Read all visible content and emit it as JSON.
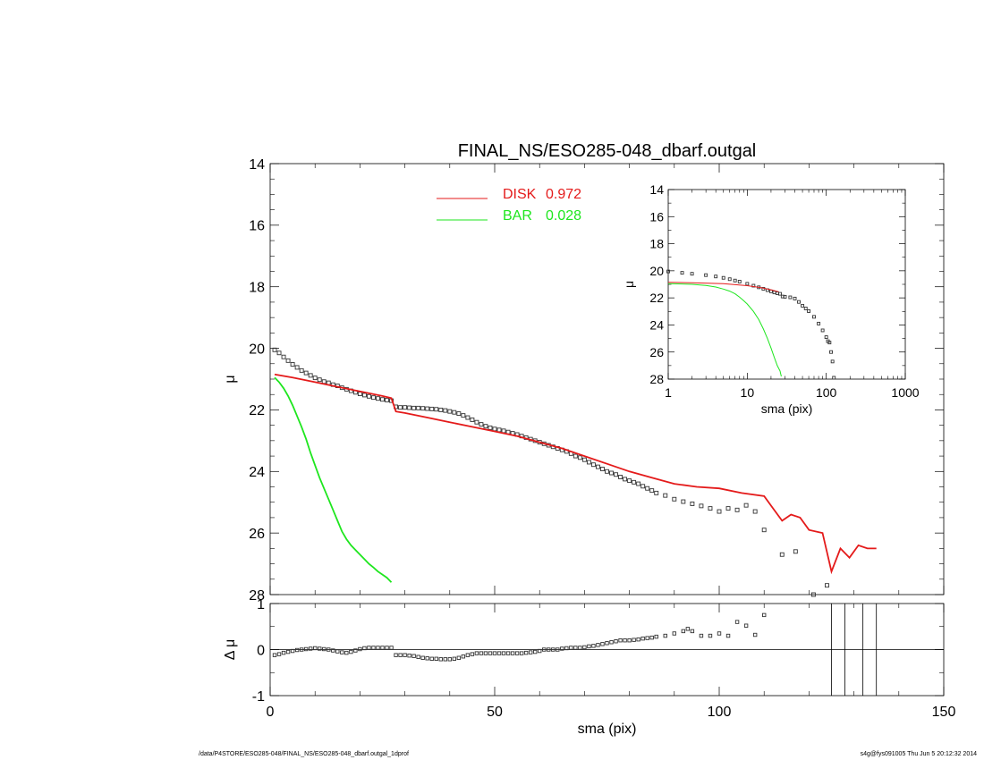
{
  "footer": {
    "path": "/data/P4STORE/ESO285-048/FINAL_NS/ESO285-048_dbarf.outgal_1dprof",
    "stamp": "s4g@fys091005  Thu Jun  5 20:12:32 2014"
  },
  "chart_data": [
    {
      "id": "main",
      "type": "line",
      "title": "FINAL_NS/ESO285-048_dbarf.outgal",
      "xlabel": "",
      "ylabel": "μ",
      "xlim": [
        0,
        150
      ],
      "ylim": [
        28,
        14
      ],
      "y_inverted": true,
      "yticks": [
        14,
        16,
        18,
        20,
        22,
        24,
        26,
        28
      ],
      "legend_position": "top-center",
      "legend": [
        {
          "name": "DISK",
          "value": "0.972",
          "color": "#e41a1a"
        },
        {
          "name": "BAR",
          "value": "0.028",
          "color": "#1ee61e"
        }
      ],
      "series": [
        {
          "name": "data",
          "style": "points",
          "color": "#000000",
          "x": [
            1,
            2,
            3,
            4,
            5,
            6,
            7,
            8,
            9,
            10,
            11,
            12,
            13,
            14,
            15,
            16,
            17,
            18,
            19,
            20,
            21,
            22,
            23,
            24,
            25,
            26,
            27,
            28,
            29,
            30,
            31,
            32,
            33,
            34,
            35,
            36,
            37,
            38,
            39,
            40,
            41,
            42,
            43,
            44,
            45,
            46,
            47,
            48,
            49,
            50,
            51,
            52,
            53,
            54,
            55,
            56,
            57,
            58,
            59,
            60,
            61,
            62,
            63,
            64,
            65,
            66,
            67,
            68,
            69,
            70,
            71,
            72,
            73,
            74,
            75,
            76,
            77,
            78,
            79,
            80,
            81,
            82,
            83,
            84,
            85,
            86,
            88,
            90,
            92,
            94,
            96,
            98,
            100,
            102,
            104,
            106,
            108,
            110,
            114,
            117,
            121,
            124
          ],
          "y": [
            20.05,
            20.15,
            20.28,
            20.4,
            20.52,
            20.62,
            20.72,
            20.8,
            20.88,
            20.96,
            21.02,
            21.08,
            21.12,
            21.18,
            21.22,
            21.28,
            21.33,
            21.38,
            21.43,
            21.48,
            21.52,
            21.56,
            21.6,
            21.63,
            21.66,
            21.68,
            21.7,
            21.9,
            21.92,
            21.92,
            21.93,
            21.94,
            21.94,
            21.95,
            21.96,
            21.97,
            21.98,
            22.0,
            22.02,
            22.05,
            22.08,
            22.12,
            22.18,
            22.25,
            22.32,
            22.4,
            22.47,
            22.53,
            22.58,
            22.62,
            22.65,
            22.68,
            22.72,
            22.76,
            22.8,
            22.85,
            22.9,
            22.95,
            23.0,
            23.05,
            23.1,
            23.15,
            23.2,
            23.25,
            23.3,
            23.35,
            23.42,
            23.5,
            23.55,
            23.62,
            23.7,
            23.78,
            23.85,
            23.92,
            24.0,
            24.05,
            24.1,
            24.18,
            24.25,
            24.3,
            24.35,
            24.4,
            24.48,
            24.55,
            24.62,
            24.7,
            24.78,
            24.9,
            24.98,
            25.05,
            25.12,
            25.2,
            25.3,
            25.2,
            25.25,
            25.1,
            25.3,
            25.9,
            26.7,
            26.6,
            28.0,
            27.7
          ]
        },
        {
          "name": "DISK",
          "style": "line",
          "color": "#e41a1a",
          "x": [
            1,
            5,
            10,
            15,
            20,
            25,
            27,
            28,
            30,
            35,
            40,
            45,
            50,
            55,
            60,
            65,
            70,
            75,
            80,
            85,
            90,
            95,
            100,
            105,
            110,
            112,
            114,
            116,
            118,
            120,
            123,
            125,
            127,
            129,
            131,
            133,
            135
          ],
          "y": [
            20.85,
            20.95,
            21.1,
            21.25,
            21.4,
            21.55,
            21.62,
            22.05,
            22.1,
            22.25,
            22.4,
            22.55,
            22.7,
            22.85,
            23.05,
            23.25,
            23.5,
            23.75,
            24.0,
            24.2,
            24.4,
            24.5,
            24.55,
            24.7,
            24.8,
            25.2,
            25.6,
            25.4,
            25.5,
            25.9,
            26.0,
            27.25,
            26.5,
            26.8,
            26.4,
            26.5,
            26.5
          ]
        },
        {
          "name": "BAR",
          "style": "line",
          "color": "#1ee61e",
          "x": [
            1,
            2,
            3,
            4,
            5,
            6,
            7,
            8,
            9,
            10,
            11,
            12,
            13,
            14,
            15,
            16,
            17,
            18,
            19,
            20,
            21,
            22,
            23,
            24,
            25,
            26,
            27
          ],
          "y": [
            20.95,
            21.1,
            21.3,
            21.55,
            21.85,
            22.2,
            22.55,
            22.95,
            23.4,
            23.8,
            24.2,
            24.55,
            24.9,
            25.25,
            25.6,
            25.95,
            26.2,
            26.4,
            26.55,
            26.7,
            26.85,
            27.0,
            27.12,
            27.25,
            27.35,
            27.45,
            27.6
          ]
        }
      ]
    },
    {
      "id": "residual",
      "type": "scatter",
      "title": "",
      "xlabel": "sma (pix)",
      "ylabel": "Δ μ",
      "xlim": [
        0,
        150
      ],
      "ylim": [
        -1,
        1
      ],
      "xticks": [
        0,
        50,
        100,
        150
      ],
      "yticks": [
        -1,
        0,
        1
      ],
      "zero_line": true,
      "vertical_lines_x": [
        125,
        128,
        132,
        135
      ],
      "series": [
        {
          "name": "residual",
          "style": "points",
          "color": "#000000",
          "x": [
            1,
            2,
            3,
            4,
            5,
            6,
            7,
            8,
            9,
            10,
            11,
            12,
            13,
            14,
            15,
            16,
            17,
            18,
            19,
            20,
            21,
            22,
            23,
            24,
            25,
            26,
            27,
            28,
            29,
            30,
            31,
            32,
            33,
            34,
            35,
            36,
            37,
            38,
            39,
            40,
            41,
            42,
            43,
            44,
            45,
            46,
            47,
            48,
            49,
            50,
            51,
            52,
            53,
            54,
            55,
            56,
            57,
            58,
            59,
            60,
            61,
            62,
            63,
            64,
            65,
            66,
            67,
            68,
            69,
            70,
            71,
            72,
            73,
            74,
            75,
            76,
            77,
            78,
            79,
            80,
            81,
            82,
            83,
            84,
            85,
            86,
            88,
            90,
            92,
            93,
            94,
            96,
            98,
            100,
            102,
            104,
            106,
            108,
            110
          ],
          "y": [
            -0.12,
            -0.1,
            -0.07,
            -0.05,
            -0.03,
            -0.01,
            0.0,
            0.01,
            0.02,
            0.03,
            0.02,
            0.01,
            0.0,
            -0.02,
            -0.04,
            -0.06,
            -0.07,
            -0.05,
            -0.02,
            0.01,
            0.03,
            0.04,
            0.04,
            0.04,
            0.04,
            0.04,
            0.04,
            -0.12,
            -0.12,
            -0.12,
            -0.13,
            -0.14,
            -0.16,
            -0.18,
            -0.19,
            -0.2,
            -0.2,
            -0.21,
            -0.21,
            -0.21,
            -0.2,
            -0.18,
            -0.15,
            -0.12,
            -0.1,
            -0.08,
            -0.08,
            -0.08,
            -0.08,
            -0.08,
            -0.08,
            -0.08,
            -0.08,
            -0.08,
            -0.08,
            -0.08,
            -0.07,
            -0.06,
            -0.05,
            -0.03,
            0.0,
            0.0,
            0.0,
            0.0,
            0.02,
            0.03,
            0.04,
            0.04,
            0.04,
            0.05,
            0.07,
            0.08,
            0.1,
            0.12,
            0.14,
            0.16,
            0.18,
            0.2,
            0.2,
            0.2,
            0.21,
            0.22,
            0.24,
            0.25,
            0.26,
            0.28,
            0.3,
            0.35,
            0.4,
            0.45,
            0.4,
            0.3,
            0.3,
            0.35,
            0.3,
            0.6,
            0.52,
            0.32,
            0.75
          ]
        }
      ]
    },
    {
      "id": "inset",
      "type": "line",
      "title": "",
      "xlabel": "sma (pix)",
      "ylabel": "μ",
      "x_scale": "log",
      "xlim": [
        1,
        1000
      ],
      "ylim": [
        28,
        14
      ],
      "y_inverted": true,
      "xticks": [
        1,
        10,
        100,
        1000
      ],
      "yticks": [
        14,
        16,
        18,
        20,
        22,
        24,
        26,
        28
      ],
      "series": [
        {
          "name": "data",
          "style": "points",
          "color": "#000000",
          "x": [
            1,
            1.5,
            2,
            3,
            4,
            5,
            6,
            7,
            8,
            10,
            12,
            14,
            16,
            18,
            20,
            22,
            24,
            26,
            28,
            30,
            35,
            40,
            45,
            50,
            55,
            60,
            70,
            80,
            90,
            100,
            105,
            110,
            115,
            120,
            125
          ],
          "y": [
            20.05,
            20.15,
            20.22,
            20.32,
            20.42,
            20.52,
            20.62,
            20.72,
            20.8,
            20.96,
            21.1,
            21.22,
            21.33,
            21.43,
            21.52,
            21.6,
            21.66,
            21.7,
            21.9,
            21.92,
            21.96,
            22.05,
            22.3,
            22.58,
            22.78,
            22.98,
            23.4,
            23.9,
            24.4,
            24.9,
            25.2,
            25.3,
            26.0,
            26.7,
            27.9
          ]
        },
        {
          "name": "DISK",
          "style": "line",
          "color": "#e41a1a",
          "x": [
            1,
            2,
            5,
            10,
            15,
            20,
            25
          ],
          "y": [
            20.85,
            20.88,
            20.95,
            21.1,
            21.25,
            21.4,
            21.55
          ]
        },
        {
          "name": "BAR",
          "style": "line",
          "color": "#1ee61e",
          "x": [
            1,
            2,
            3,
            4,
            5,
            6,
            7,
            8,
            9,
            10,
            12,
            14,
            16,
            18,
            20,
            22,
            24,
            26,
            27
          ],
          "y": [
            20.95,
            21.0,
            21.08,
            21.2,
            21.35,
            21.5,
            21.7,
            21.95,
            22.2,
            22.45,
            23.0,
            23.6,
            24.3,
            25.0,
            25.7,
            26.4,
            27.0,
            27.4,
            27.8
          ]
        }
      ]
    }
  ]
}
